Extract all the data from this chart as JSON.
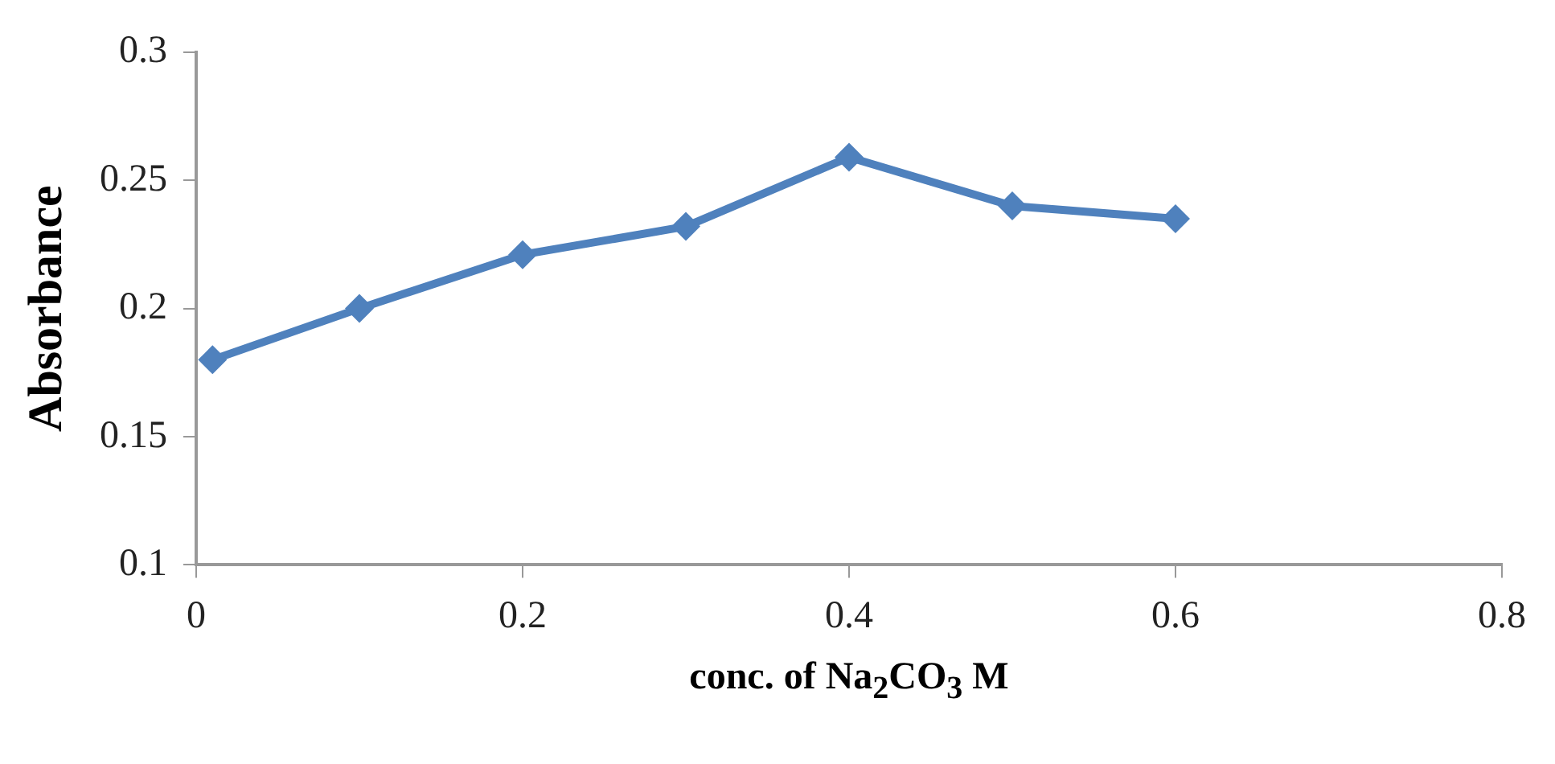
{
  "chart_data": {
    "type": "line",
    "xlabel": "conc. of Na$_{2}$CO$_{3}$ M",
    "ylabel": "Absorbance",
    "x": [
      0.01,
      0.1,
      0.2,
      0.3,
      0.4,
      0.5,
      0.6
    ],
    "series": [
      {
        "color": "#4f81bd",
        "values": [
          0.18,
          0.2,
          0.221,
          0.232,
          0.259,
          0.24,
          0.235
        ]
      }
    ],
    "xlim": [
      0,
      0.8
    ],
    "xticks": [
      0,
      0.2,
      0.4,
      0.6,
      0.8
    ],
    "ylim": [
      0.1,
      0.3
    ],
    "yticks": [
      0.1,
      0.15,
      0.2,
      0.25,
      0.3
    ],
    "grid": false,
    "legend": false,
    "marker": "diamond",
    "line_style": "solid"
  }
}
